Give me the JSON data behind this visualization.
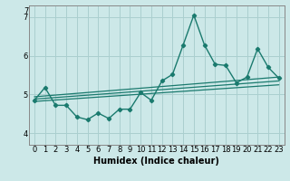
{
  "xlabel": "Humidex (Indice chaleur)",
  "background_color": "#cce8e8",
  "line_color": "#1a7a6e",
  "grid_color": "#aacfcf",
  "ylim": [
    3.7,
    7.3
  ],
  "xlim": [
    -0.5,
    23.5
  ],
  "yticks": [
    4,
    5,
    6,
    7
  ],
  "xticks": [
    0,
    1,
    2,
    3,
    4,
    5,
    6,
    7,
    8,
    9,
    10,
    11,
    12,
    13,
    14,
    15,
    16,
    17,
    18,
    19,
    20,
    21,
    22,
    23
  ],
  "main_y": [
    4.85,
    5.18,
    4.72,
    4.72,
    4.42,
    4.35,
    4.52,
    4.38,
    4.62,
    4.62,
    5.05,
    4.85,
    5.35,
    5.52,
    6.28,
    7.05,
    6.28,
    5.78,
    5.75,
    5.3,
    5.45,
    6.18,
    5.7,
    5.42
  ],
  "trend_lines": [
    {
      "x": [
        0,
        23
      ],
      "y": [
        4.82,
        5.25
      ]
    },
    {
      "x": [
        0,
        23
      ],
      "y": [
        4.88,
        5.35
      ]
    },
    {
      "x": [
        0,
        23
      ],
      "y": [
        4.94,
        5.45
      ]
    }
  ]
}
